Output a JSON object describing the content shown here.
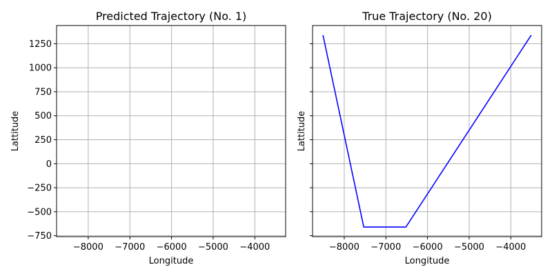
{
  "chart_data": [
    {
      "type": "line",
      "title": "Predicted Trajectory (No. 1)",
      "xlabel": "Longitude",
      "ylabel": "Lattitude",
      "xlim": [
        -8760,
        -3260
      ],
      "ylim": [
        -760,
        1440
      ],
      "xticks": [
        -8000,
        -7000,
        -6000,
        -5000,
        -4000
      ],
      "xtick_labels": [
        "−8000",
        "−7000",
        "−6000",
        "−5000",
        "−4000"
      ],
      "yticks": [
        -750,
        -500,
        -250,
        0,
        250,
        500,
        750,
        1000,
        1250
      ],
      "ytick_labels": [
        "−750",
        "−500",
        "−250",
        "0",
        "250",
        "500",
        "750",
        "1000",
        "1250"
      ],
      "grid": true,
      "series": [
        {
          "color": "#0000ff",
          "x": [],
          "y": []
        }
      ]
    },
    {
      "type": "line",
      "title": "True Trajectory (No. 20)",
      "xlabel": "Longitude",
      "ylabel": "Lattitude",
      "xlim": [
        -8760,
        -3260
      ],
      "ylim": [
        -760,
        1440
      ],
      "xticks": [
        -8000,
        -7000,
        -6000,
        -5000,
        -4000
      ],
      "xtick_labels": [
        "−8000",
        "−7000",
        "−6000",
        "−5000",
        "−4000"
      ],
      "yticks": [
        -750,
        -500,
        -250,
        0,
        250,
        500,
        750,
        1000,
        1250
      ],
      "ytick_labels": [],
      "grid": true,
      "series": [
        {
          "color": "#0000ff",
          "x": [
            -8510,
            -7530,
            -6520,
            -3510
          ],
          "y": [
            1340,
            -660,
            -660,
            1340
          ]
        }
      ]
    }
  ]
}
